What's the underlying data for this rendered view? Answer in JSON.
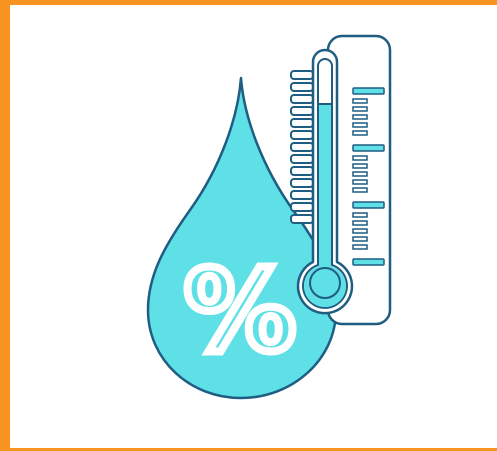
{
  "icon": {
    "name": "humidity-temperature-icon",
    "symbol": "%"
  },
  "colors": {
    "frame": "#f7931e",
    "fill": "#5ee0e6",
    "outline": "#1f5d82",
    "background": "#ffffff"
  }
}
